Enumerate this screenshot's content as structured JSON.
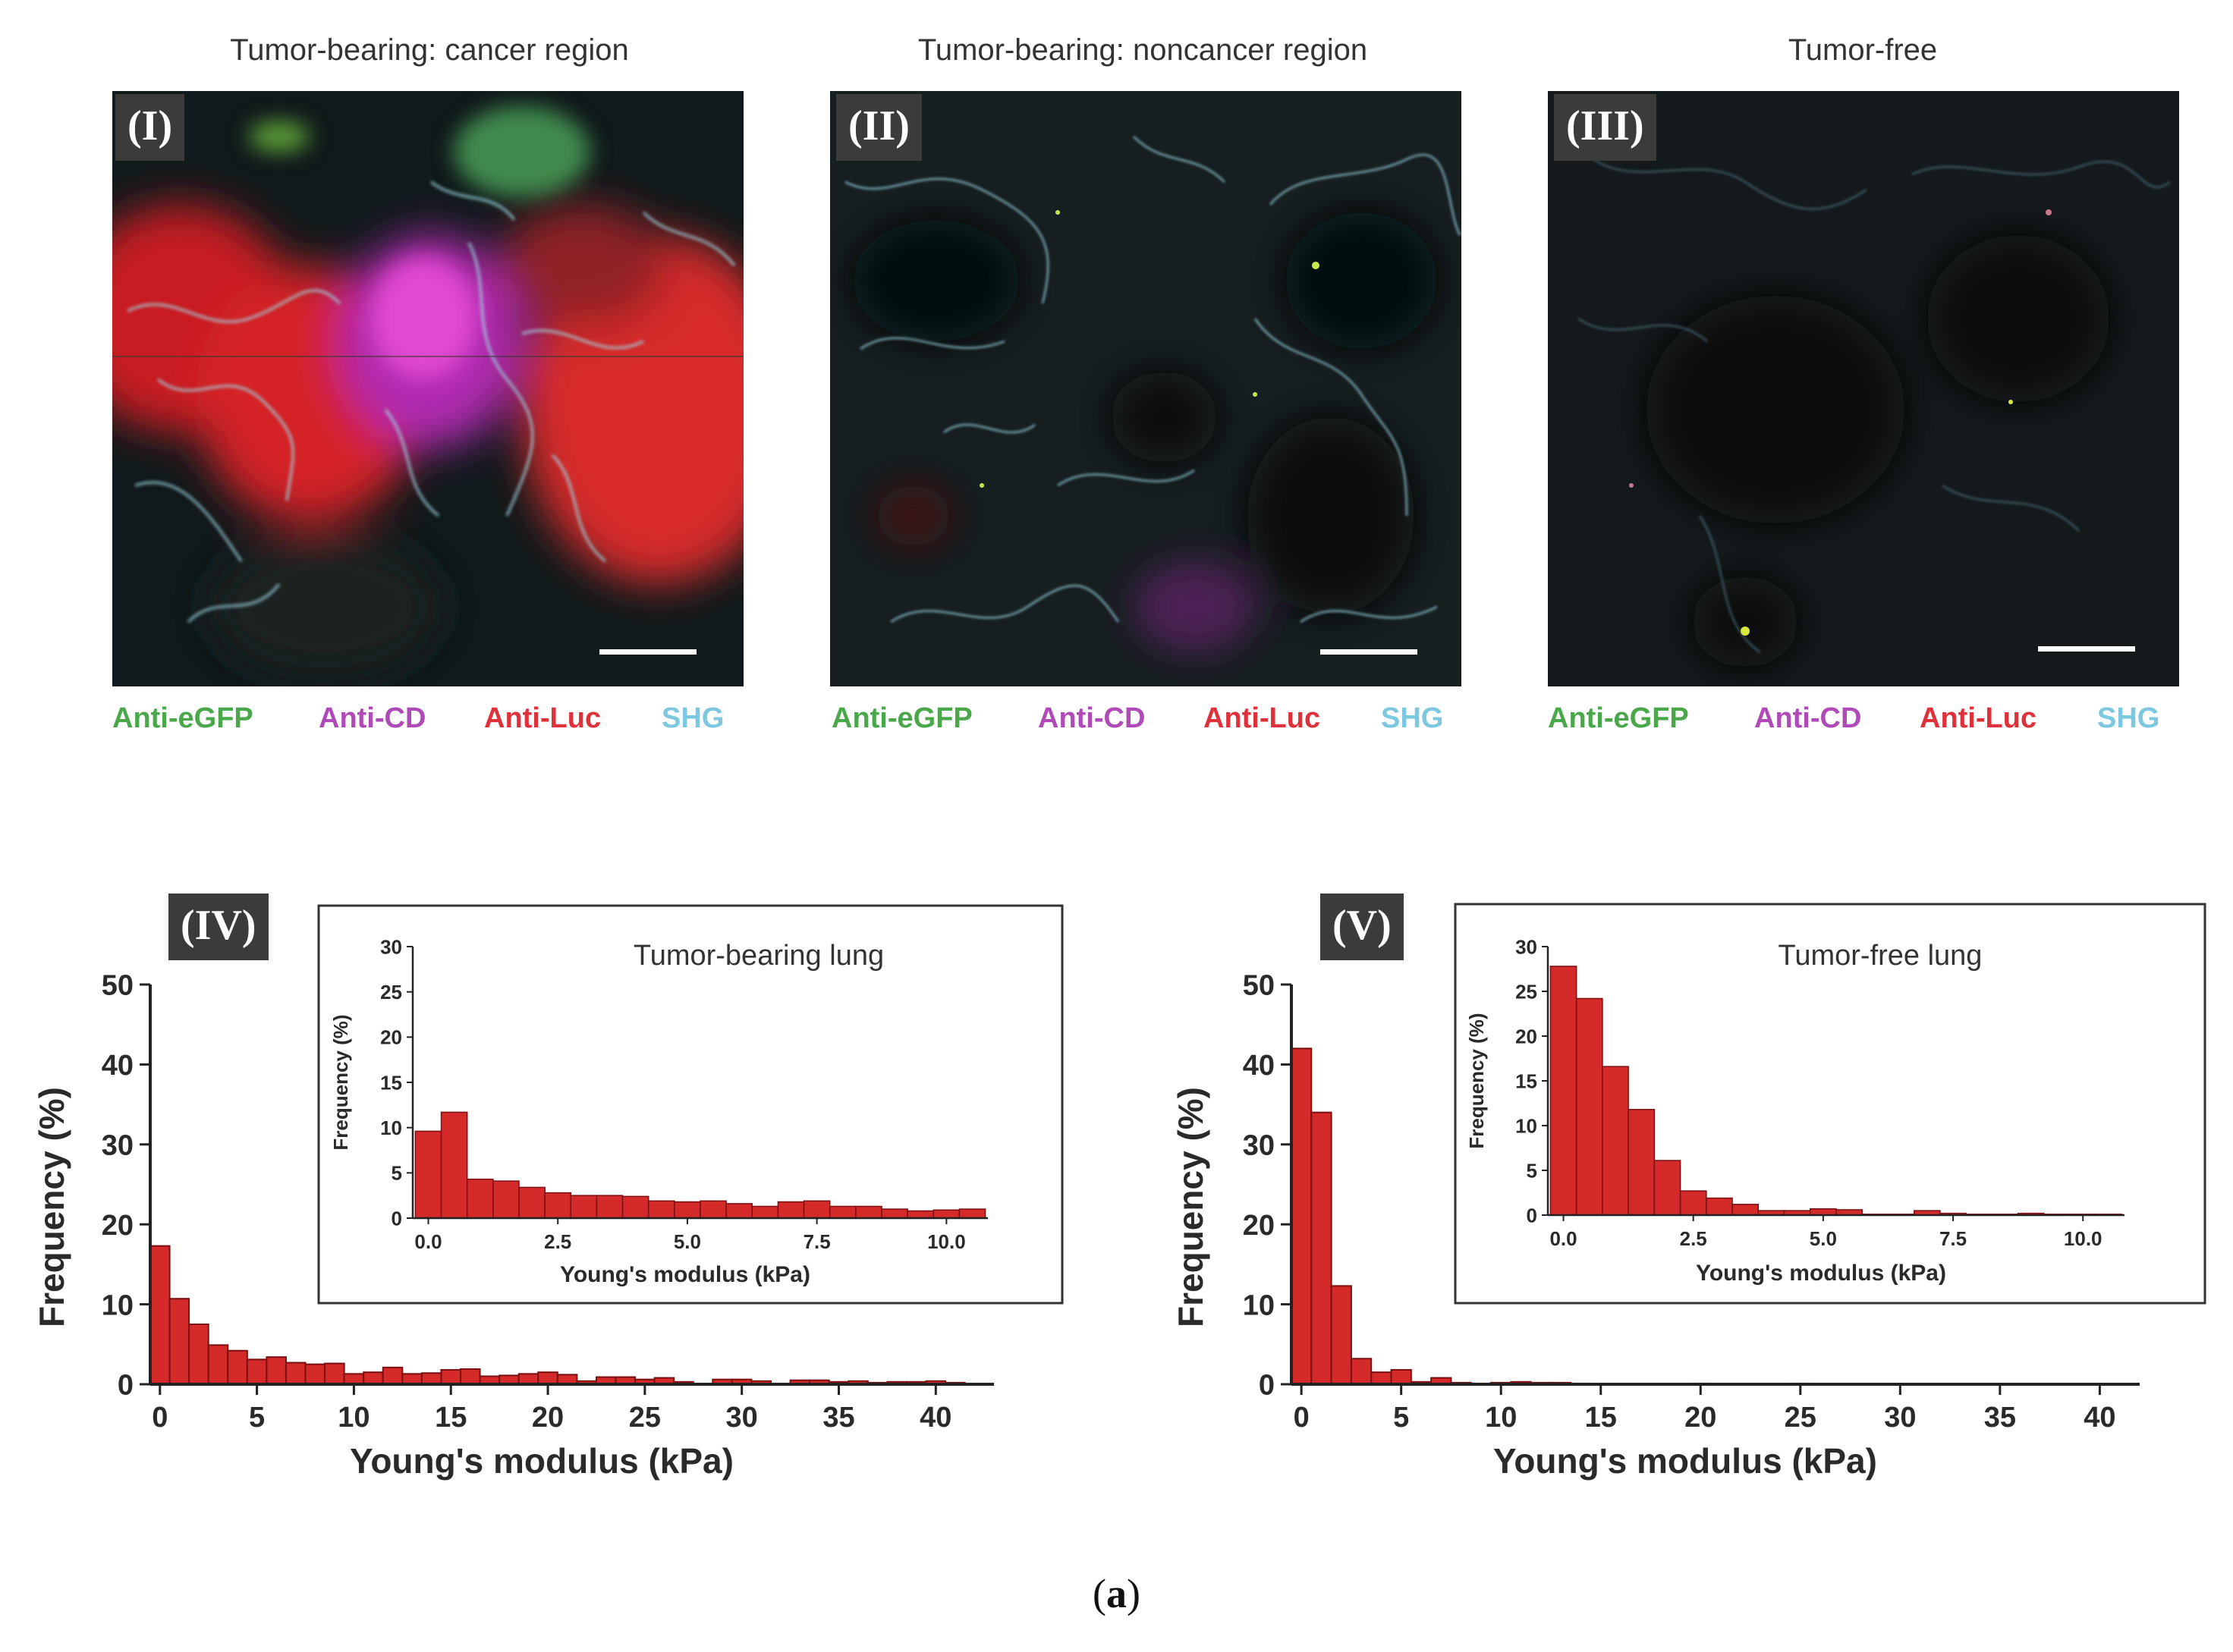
{
  "figure_caption": {
    "open": "(",
    "letter": "a",
    "close": ")"
  },
  "panels": [
    {
      "label": "(I)",
      "title": "Tumor-bearing: cancer region"
    },
    {
      "label": "(II)",
      "title": "Tumor-bearing: noncancer region"
    },
    {
      "label": "(III)",
      "title": "Tumor-free"
    }
  ],
  "stain_legend": [
    {
      "name": "Anti-eGFP",
      "color": "#4aa84a"
    },
    {
      "name": "Anti-CD",
      "color": "#b04ab8"
    },
    {
      "name": "Anti-Luc",
      "color": "#e0303a"
    },
    {
      "name": "SHG",
      "color": "#7cc8e0"
    }
  ],
  "colors": {
    "bar_fill": "#d42a2a",
    "bar_stroke": "#7a1010",
    "axis": "#222222"
  },
  "chart_data": [
    {
      "id": "IV",
      "label": "(IV)",
      "type": "bar",
      "xlabel": "Young's modulus (kPa)",
      "ylabel": "Frequency (%)",
      "xlim": [
        -0.5,
        43
      ],
      "ylim": [
        0,
        50
      ],
      "bin_width": 1,
      "xticks": [
        0,
        5,
        10,
        15,
        20,
        25,
        30,
        35,
        40
      ],
      "yticks": [
        0,
        10,
        20,
        30,
        40,
        50
      ],
      "values": [
        17.3,
        10.7,
        7.5,
        4.9,
        4.2,
        3.1,
        3.4,
        2.7,
        2.5,
        2.6,
        1.3,
        1.5,
        2.1,
        1.3,
        1.4,
        1.8,
        1.9,
        1.0,
        1.1,
        1.3,
        1.5,
        1.2,
        0.4,
        0.9,
        0.9,
        0.6,
        0.8,
        0.3,
        0,
        0.6,
        0.6,
        0.4,
        0,
        0.5,
        0.5,
        0.3,
        0.4,
        0.2,
        0.3,
        0.3,
        0.4,
        0.2
      ],
      "inset": {
        "title": "Tumor-bearing lung",
        "xlabel": "Young's modulus (kPa)",
        "ylabel": "Frequency (%)",
        "xlim": [
          -0.3,
          10.8
        ],
        "ylim": [
          0,
          30
        ],
        "bin_width": 0.5,
        "xticks": [
          0.0,
          2.5,
          5.0,
          7.5,
          10.0
        ],
        "xtick_labels": [
          "0.0",
          "2.5",
          "5.0",
          "7.5",
          "10.0"
        ],
        "yticks": [
          0,
          5,
          10,
          15,
          20,
          25,
          30
        ],
        "values": [
          9.6,
          11.7,
          4.3,
          4.1,
          3.4,
          2.8,
          2.5,
          2.5,
          2.4,
          1.9,
          1.8,
          1.9,
          1.6,
          1.3,
          1.8,
          1.9,
          1.3,
          1.3,
          1.0,
          0.8,
          0.9,
          1.0
        ]
      }
    },
    {
      "id": "V",
      "label": "(V)",
      "type": "bar",
      "xlabel": "Young's modulus (kPa)",
      "ylabel": "Frequency (%)",
      "xlim": [
        -0.5,
        42
      ],
      "ylim": [
        0,
        50
      ],
      "bin_width": 1,
      "xticks": [
        0,
        5,
        10,
        15,
        20,
        25,
        30,
        35,
        40
      ],
      "yticks": [
        0,
        10,
        20,
        30,
        40,
        50
      ],
      "values": [
        42.0,
        34.0,
        12.3,
        3.2,
        1.5,
        1.8,
        0.3,
        0.8,
        0.2,
        0.1,
        0.2,
        0.3,
        0.2,
        0.2,
        0.1,
        0,
        0,
        0,
        0,
        0,
        0.1,
        0,
        0,
        0,
        0,
        0.1,
        0,
        0,
        0,
        0,
        0,
        0,
        0,
        0,
        0,
        0,
        0,
        0,
        0,
        0,
        0
      ],
      "inset": {
        "title": "Tumor-free lung",
        "xlabel": "Young's modulus (kPa)",
        "ylabel": "Frequency (%)",
        "xlim": [
          -0.3,
          10.8
        ],
        "ylim": [
          0,
          30
        ],
        "bin_width": 0.5,
        "xticks": [
          0.0,
          2.5,
          5.0,
          7.5,
          10.0
        ],
        "xtick_labels": [
          "0.0",
          "2.5",
          "5.0",
          "7.5",
          "10.0"
        ],
        "yticks": [
          0,
          5,
          10,
          15,
          20,
          25,
          30
        ],
        "values": [
          27.8,
          24.2,
          16.6,
          11.8,
          6.1,
          2.7,
          1.9,
          1.2,
          0.5,
          0.5,
          0.7,
          0.6,
          0.1,
          0.1,
          0.5,
          0.2,
          0.1,
          0.1,
          0.2,
          0.1,
          0.1,
          0.1
        ]
      }
    }
  ]
}
